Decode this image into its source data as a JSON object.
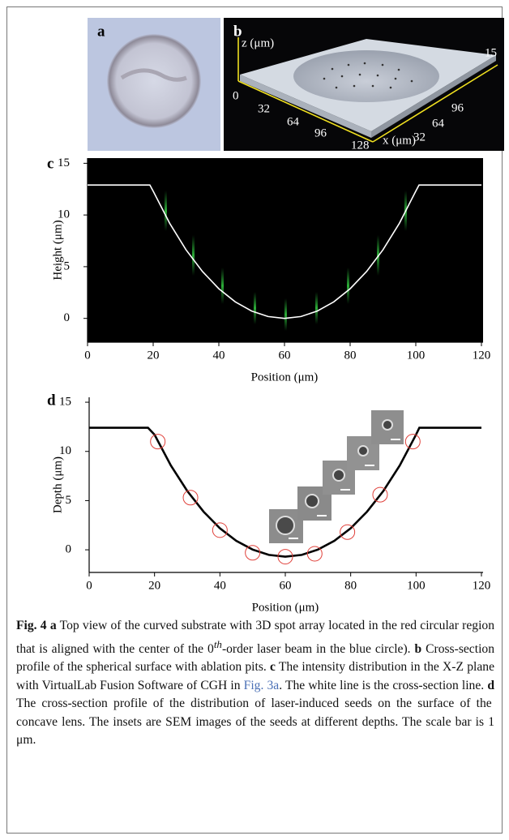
{
  "panels": {
    "a": {
      "label": "a"
    },
    "b": {
      "label": "b",
      "z_axis": "z (μm)",
      "z_tick": "15",
      "x_axis": "x (μm)",
      "x_ticks": [
        "0",
        "32",
        "64",
        "96",
        "128"
      ],
      "y_ticks": [
        "96",
        "64",
        "32"
      ]
    }
  },
  "chart_data": [
    {
      "type": "line",
      "label": "c",
      "xlabel": "Position (μm)",
      "ylabel": "Height (μm)",
      "color": "#ffffff",
      "x": [
        0,
        10,
        19,
        20,
        25,
        30,
        35,
        40,
        45,
        50,
        55,
        60,
        65,
        70,
        75,
        80,
        85,
        90,
        95,
        100,
        101,
        110,
        120
      ],
      "values": [
        12.9,
        12.9,
        12.9,
        12.31,
        9.2,
        6.63,
        4.54,
        2.87,
        1.6,
        0.71,
        0.18,
        0,
        0.18,
        0.71,
        1.6,
        2.87,
        4.54,
        6.63,
        9.2,
        12.31,
        12.9,
        12.9,
        12.9
      ],
      "xlim": [
        0,
        120
      ],
      "ylim": [
        -2.3,
        15.5
      ],
      "xticks": [
        0,
        20,
        40,
        60,
        80,
        100,
        120
      ],
      "yticks": [
        0,
        5,
        10,
        15
      ]
    },
    {
      "type": "line",
      "label": "d",
      "xlabel": "Position (μm)",
      "ylabel": "Depth (μm)",
      "color": "#000000",
      "x": [
        0,
        10,
        18,
        20,
        25,
        30,
        35,
        40,
        45,
        50,
        55,
        60,
        65,
        70,
        75,
        80,
        85,
        90,
        95,
        100,
        101,
        110,
        120
      ],
      "values": [
        12.4,
        12.4,
        12.4,
        11.7,
        8.57,
        5.98,
        3.87,
        2.19,
        0.91,
        0.02,
        -0.52,
        -0.7,
        -0.52,
        0.02,
        0.91,
        2.19,
        3.87,
        5.98,
        8.57,
        11.7,
        12.4,
        12.4,
        12.4
      ],
      "markers": {
        "color": "#e0403a",
        "x": [
          21,
          31,
          40,
          50,
          60,
          69,
          79,
          89,
          99
        ],
        "values": [
          11,
          5.3,
          2,
          -0.3,
          -0.7,
          -0.4,
          1.8,
          5.6,
          11
        ]
      },
      "xlim": [
        0,
        120
      ],
      "ylim": [
        -2.3,
        15.5
      ],
      "xticks": [
        0,
        20,
        40,
        60,
        80,
        100,
        120
      ],
      "yticks": [
        0,
        5,
        10,
        15
      ]
    }
  ],
  "caption": [
    "Fig. 4",
    " a",
    " Top view of the curved substrate with 3D spot array located in the red circular region that is aligned with the center of the 0",
    "th",
    "-order laser beam in the blue circle). ",
    "b",
    " Cross-section profile of the spherical surface with ablation pits. ",
    "c",
    " The intensity distribution in the X-Z plane with VirtualLab Fusion Software of CGH in ",
    "Fig. 3a",
    ". The white line is the cross-section line. ",
    "d",
    " The cross-section profile of the distribution of laser-induced seeds on the surface of the concave lens. The insets are SEM images of the seeds at different depths. The scale bar is 1 μm."
  ]
}
